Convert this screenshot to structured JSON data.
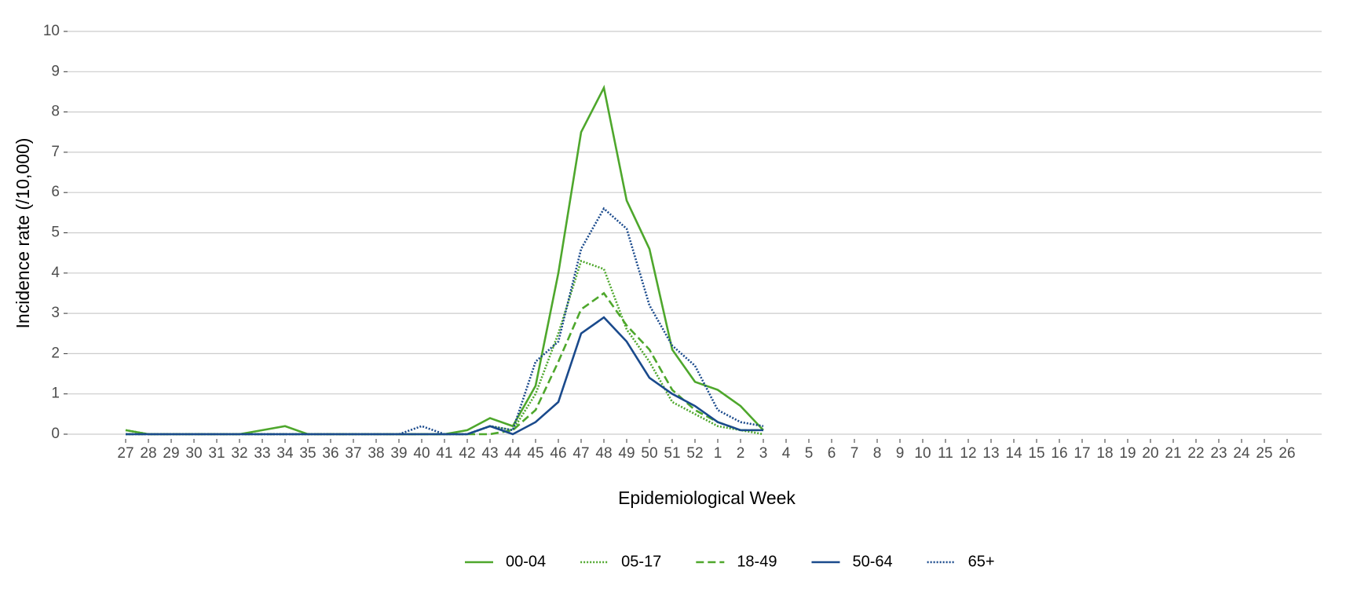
{
  "chart_data": {
    "type": "line",
    "xlabel": "Epidemiological Week",
    "ylabel": "Incidence rate (/10,000)",
    "categories": [
      "27",
      "28",
      "29",
      "30",
      "31",
      "32",
      "33",
      "34",
      "35",
      "36",
      "37",
      "38",
      "39",
      "40",
      "41",
      "42",
      "43",
      "44",
      "45",
      "46",
      "47",
      "48",
      "49",
      "50",
      "51",
      "52",
      "1",
      "2",
      "3",
      "4",
      "5",
      "6",
      "7",
      "8",
      "9",
      "10",
      "11",
      "12",
      "13",
      "14",
      "15",
      "16",
      "17",
      "18",
      "19",
      "20",
      "21",
      "22",
      "23",
      "24",
      "25",
      "26"
    ],
    "ylim": [
      0,
      10
    ],
    "yticks": [
      0,
      1,
      2,
      3,
      4,
      5,
      6,
      7,
      8,
      9,
      10
    ],
    "grid": true,
    "legend": "bottom",
    "series": [
      {
        "name": "00-04",
        "color": "#4ea72c",
        "dash": "solid",
        "values": [
          0.1,
          0,
          0,
          0,
          0,
          0,
          0.1,
          0.2,
          0,
          0,
          0,
          0,
          0,
          0,
          0,
          0.1,
          0.4,
          0.2,
          1.2,
          4.0,
          7.5,
          8.6,
          5.8,
          4.6,
          2.1,
          1.3,
          1.1,
          0.7,
          0.1,
          null,
          null,
          null,
          null,
          null,
          null,
          null,
          null,
          null,
          null,
          null,
          null,
          null,
          null,
          null,
          null,
          null,
          null,
          null,
          null,
          null,
          null,
          null
        ]
      },
      {
        "name": "05-17",
        "color": "#4ea72c",
        "dash": "dotted",
        "values": [
          0.1,
          0,
          0,
          0,
          0,
          0,
          0,
          0,
          0,
          0,
          0,
          0,
          0,
          0,
          0,
          0,
          0.2,
          0.1,
          1.0,
          2.5,
          4.3,
          4.1,
          2.6,
          1.8,
          0.8,
          0.5,
          0.2,
          0.1,
          0,
          null,
          null,
          null,
          null,
          null,
          null,
          null,
          null,
          null,
          null,
          null,
          null,
          null,
          null,
          null,
          null,
          null,
          null,
          null,
          null,
          null,
          null,
          null
        ]
      },
      {
        "name": "18-49",
        "color": "#4ea72c",
        "dash": "dashed",
        "values": [
          0,
          0,
          0,
          0,
          0,
          0,
          0,
          0,
          0,
          0,
          0,
          0,
          0,
          0,
          0,
          0,
          0,
          0.1,
          0.6,
          1.8,
          3.1,
          3.5,
          2.7,
          2.1,
          1.1,
          0.6,
          0.3,
          0.1,
          0.1,
          null,
          null,
          null,
          null,
          null,
          null,
          null,
          null,
          null,
          null,
          null,
          null,
          null,
          null,
          null,
          null,
          null,
          null,
          null,
          null,
          null,
          null,
          null
        ]
      },
      {
        "name": "50-64",
        "color": "#1a4a8c",
        "dash": "solid",
        "values": [
          0,
          0,
          0,
          0,
          0,
          0,
          0,
          0,
          0,
          0,
          0,
          0,
          0,
          0,
          0,
          0,
          0.2,
          0,
          0.3,
          0.8,
          2.5,
          2.9,
          2.3,
          1.4,
          1.0,
          0.7,
          0.3,
          0.1,
          0.1,
          null,
          null,
          null,
          null,
          null,
          null,
          null,
          null,
          null,
          null,
          null,
          null,
          null,
          null,
          null,
          null,
          null,
          null,
          null,
          null,
          null,
          null,
          null
        ]
      },
      {
        "name": "65+",
        "color": "#1a4a8c",
        "dash": "dotted",
        "values": [
          0,
          0,
          0,
          0,
          0,
          0,
          0,
          0,
          0,
          0,
          0,
          0,
          0,
          0.2,
          0,
          0,
          0.2,
          0.1,
          1.8,
          2.3,
          4.6,
          5.6,
          5.1,
          3.2,
          2.2,
          1.7,
          0.6,
          0.3,
          0.2,
          null,
          null,
          null,
          null,
          null,
          null,
          null,
          null,
          null,
          null,
          null,
          null,
          null,
          null,
          null,
          null,
          null,
          null,
          null,
          null,
          null,
          null,
          null
        ]
      }
    ]
  }
}
